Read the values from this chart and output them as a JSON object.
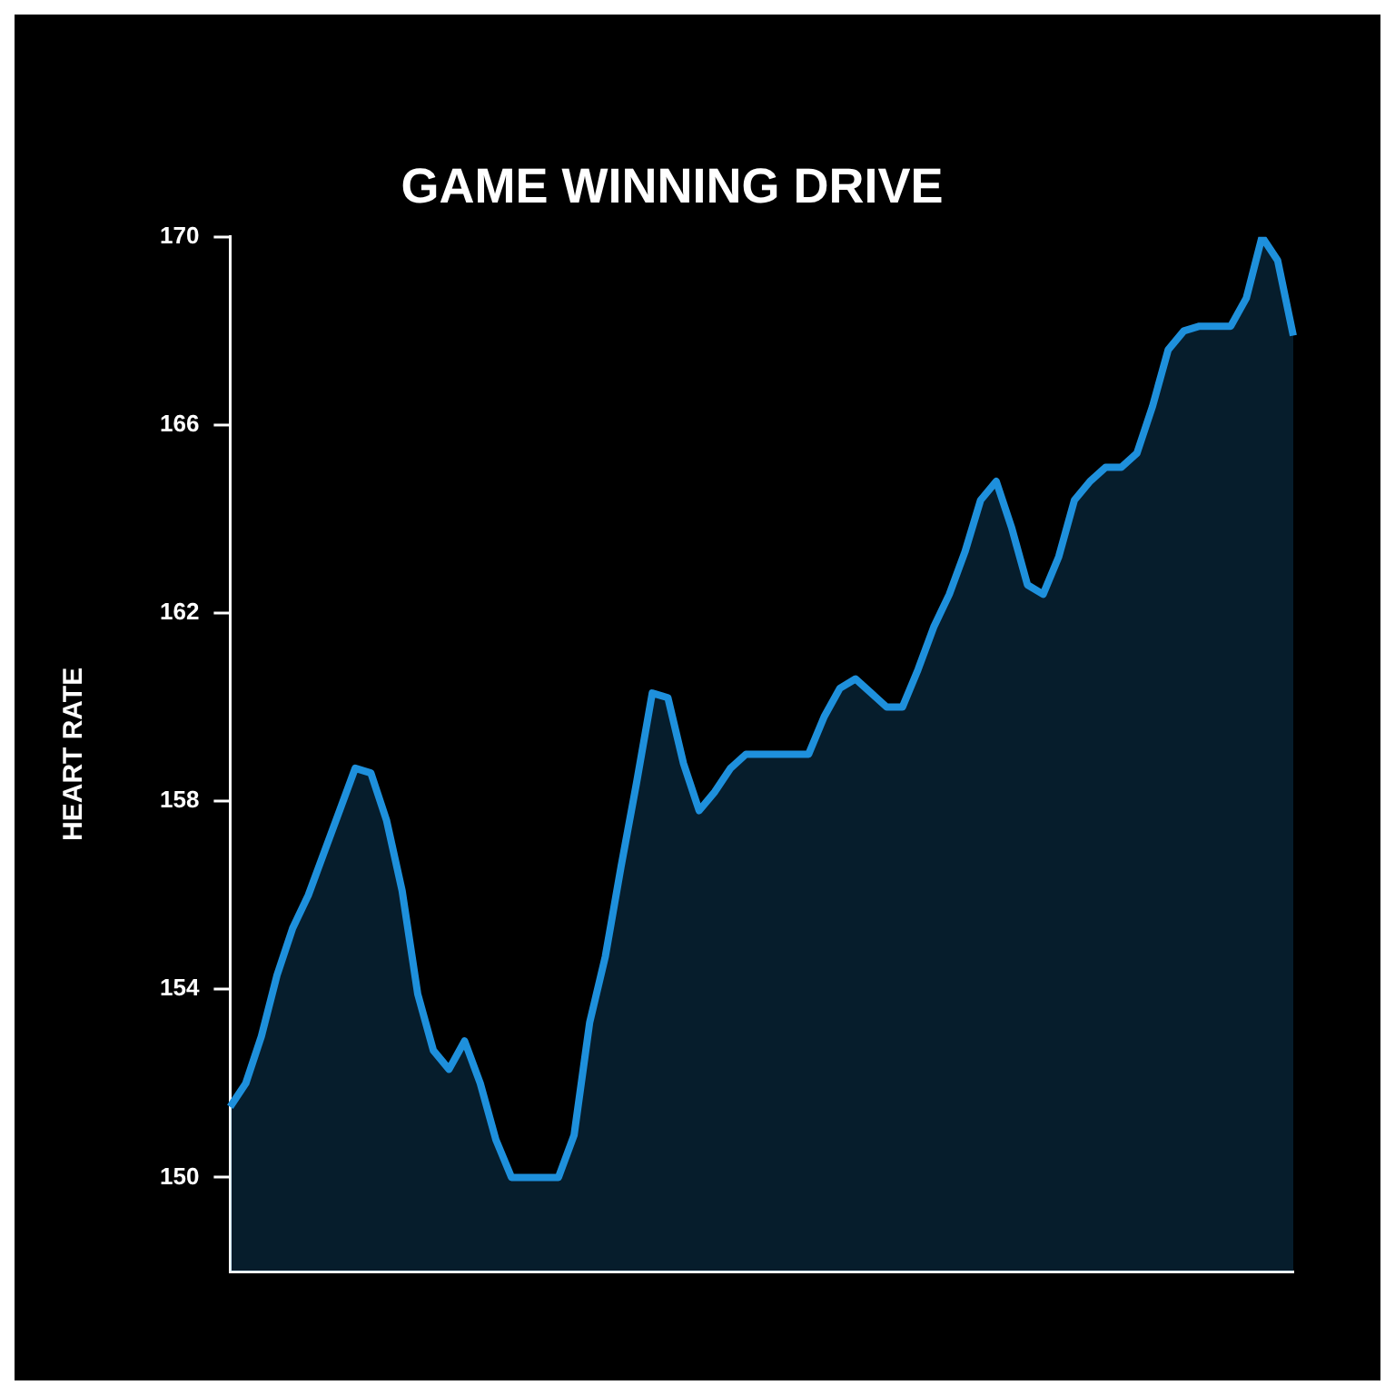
{
  "chart_data": {
    "type": "area",
    "title": "GAME WINNING DRIVE",
    "ylabel": "HEART RATE",
    "categories": [
      null,
      null,
      null,
      null,
      null,
      null,
      null,
      null,
      null,
      null,
      null,
      null,
      null,
      null,
      null,
      null,
      null,
      null,
      null,
      null,
      null,
      null,
      null,
      null,
      null,
      null,
      null,
      null,
      null,
      null,
      null,
      null,
      null,
      null,
      null,
      null,
      null,
      null,
      null,
      null,
      null,
      null,
      null,
      null,
      null,
      null,
      null,
      null,
      null,
      null,
      null,
      null,
      null,
      null,
      null,
      null,
      null,
      null,
      null,
      null,
      null,
      null,
      null,
      null,
      null,
      null,
      null,
      null,
      null
    ],
    "series": [
      {
        "color": "#1e90dc",
        "values": [
          151.5,
          152.0,
          153.0,
          154.3,
          155.3,
          156.0,
          156.9,
          157.8,
          158.7,
          158.6,
          157.6,
          156.1,
          153.9,
          152.7,
          152.3,
          152.9,
          152.0,
          150.8,
          150.0,
          150.0,
          150.0,
          150.0,
          150.9,
          153.3,
          154.7,
          156.6,
          158.4,
          160.3,
          160.2,
          158.8,
          157.8,
          158.2,
          158.7,
          159.0,
          159.0,
          159.0,
          159.0,
          159.0,
          159.8,
          160.4,
          160.6,
          160.3,
          160.0,
          160.0,
          160.8,
          161.7,
          162.4,
          163.3,
          164.4,
          164.8,
          163.8,
          162.6,
          162.4,
          163.2,
          164.4,
          164.8,
          165.1,
          165.1,
          165.4,
          166.4,
          167.6,
          168.0,
          168.1,
          168.1,
          168.1,
          168.7,
          170.0,
          169.5,
          167.9
        ]
      }
    ],
    "ylim": [
      148,
      170
    ],
    "yticks": [
      150,
      154,
      158,
      162,
      166,
      170
    ],
    "grid": false,
    "legend": false,
    "tick_labels": "y",
    "marker": "none",
    "line_style": "solid"
  }
}
